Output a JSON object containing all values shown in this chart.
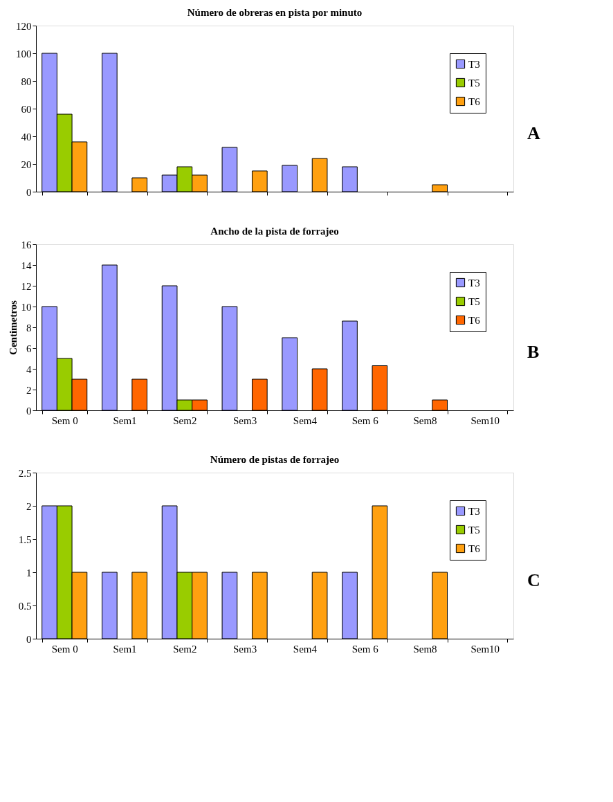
{
  "chart_data": [
    {
      "type": "bar",
      "title": "Número de obreras en pista por minuto",
      "categories": [
        null,
        null,
        null,
        null,
        null,
        null,
        null,
        null
      ],
      "ylim": [
        0,
        120
      ],
      "yticks": [
        0,
        20,
        40,
        60,
        80,
        100,
        120
      ],
      "grid": false,
      "legend": "top right",
      "tick_labels": "y",
      "annotations": [
        "A"
      ],
      "series": [
        {
          "name": "T3",
          "color": "#9999ff",
          "values": [
            100,
            100,
            12,
            32,
            19,
            18,
            null,
            null
          ]
        },
        {
          "name": "T5",
          "color": "#99cc00",
          "values": [
            56,
            null,
            18,
            null,
            null,
            null,
            null,
            null
          ]
        },
        {
          "name": "T6",
          "color": "#ffa010",
          "values": [
            36,
            10,
            12,
            15,
            24,
            null,
            5,
            null
          ]
        }
      ]
    },
    {
      "type": "bar",
      "title": "Ancho de la pista de forrajeo",
      "ylabel": "Centimetros",
      "categories": [
        "Sem 0",
        "Sem1",
        "Sem2",
        "Sem3",
        "Sem4",
        "Sem 6",
        "Sem8",
        "Sem10"
      ],
      "ylim": [
        0,
        16
      ],
      "yticks": [
        0,
        2,
        4,
        6,
        8,
        10,
        12,
        14,
        16
      ],
      "grid": false,
      "legend": "top right",
      "annotations": [
        "B"
      ],
      "series": [
        {
          "name": "T3",
          "color": "#9999ff",
          "values": [
            10,
            14,
            12,
            10,
            7,
            8.6,
            null,
            null
          ]
        },
        {
          "name": "T5",
          "color": "#99cc00",
          "values": [
            5,
            null,
            1,
            null,
            null,
            null,
            null,
            null
          ]
        },
        {
          "name": "T6",
          "color": "#ff6600",
          "values": [
            3,
            3,
            1,
            3,
            4,
            4.3,
            1,
            null
          ]
        }
      ]
    },
    {
      "type": "bar",
      "title": "Número de pistas de forrajeo",
      "categories": [
        "Sem 0",
        "Sem1",
        "Sem2",
        "Sem3",
        "Sem4",
        "Sem 6",
        "Sem8",
        "Sem10"
      ],
      "ylim": [
        0,
        2.5
      ],
      "yticks": [
        0,
        0.5,
        1,
        1.5,
        2,
        2.5
      ],
      "grid": false,
      "legend": "top right",
      "annotations": [
        "C"
      ],
      "series": [
        {
          "name": "T3",
          "color": "#9999ff",
          "values": [
            2,
            1,
            2,
            1,
            null,
            1,
            null,
            null
          ]
        },
        {
          "name": "T5",
          "color": "#99cc00",
          "values": [
            2,
            null,
            1,
            null,
            null,
            null,
            null,
            null
          ]
        },
        {
          "name": "T6",
          "color": "#ffa010",
          "values": [
            1,
            1,
            1,
            1,
            1,
            2,
            1,
            null
          ]
        }
      ]
    }
  ]
}
